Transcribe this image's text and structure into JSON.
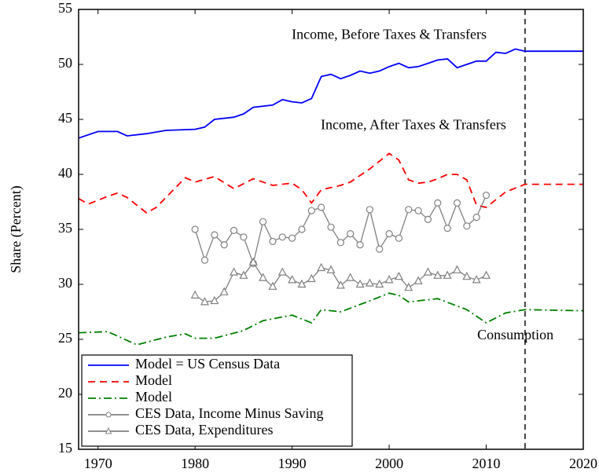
{
  "chart_data": {
    "type": "line",
    "ylabel": "Share (Percent)",
    "xlim": [
      1968,
      2020
    ],
    "xticks": [
      1970,
      1980,
      1990,
      2000,
      2010,
      2020
    ],
    "ylim": [
      15,
      55
    ],
    "yticks": [
      15,
      20,
      25,
      30,
      35,
      40,
      45,
      50,
      55
    ],
    "vline_x": 2014,
    "legend": "lower left",
    "annotations": [
      {
        "text": "Income, Before Taxes & Transfers",
        "x": 2000,
        "y": 52.6
      },
      {
        "text": "Income, After Taxes & Transfers",
        "x": 2002.5,
        "y": 44.4
      },
      {
        "text": "Consumption",
        "x": 2013,
        "y": 25.3
      }
    ],
    "series": [
      {
        "name": "Model = US Census Data",
        "color": "#0000ff",
        "dash": "solid",
        "marker": "none",
        "x": [
          1968,
          1970,
          1972,
          1973,
          1975,
          1977,
          1980,
          1981,
          1982,
          1984,
          1985,
          1986,
          1988,
          1989,
          1990,
          1991,
          1992,
          1993,
          1994,
          1995,
          1996,
          1997,
          1998,
          1999,
          2000,
          2001,
          2002,
          2003,
          2004,
          2005,
          2006,
          2007,
          2008,
          2009,
          2010,
          2011,
          2012,
          2013,
          2014,
          2020
        ],
        "values": [
          43.3,
          43.9,
          43.9,
          43.5,
          43.7,
          44.0,
          44.1,
          44.3,
          45.0,
          45.2,
          45.5,
          46.1,
          46.3,
          46.8,
          46.6,
          46.5,
          46.9,
          48.9,
          49.1,
          48.7,
          49.0,
          49.4,
          49.2,
          49.4,
          49.8,
          50.1,
          49.7,
          49.8,
          50.1,
          50.4,
          50.5,
          49.7,
          50.0,
          50.3,
          50.3,
          51.1,
          51.0,
          51.4,
          51.2,
          51.2
        ]
      },
      {
        "name": "Model",
        "color": "#ff0000",
        "dash": "dashed",
        "marker": "none",
        "x": [
          1968,
          1969,
          1971,
          1972,
          1973,
          1975,
          1976,
          1979,
          1980,
          1982,
          1984,
          1986,
          1988,
          1990,
          1991,
          1992,
          1993,
          1995,
          1996,
          1998,
          2000,
          2001,
          2002,
          2003,
          2004,
          2005,
          2006,
          2007,
          2008,
          2009,
          2010,
          2012,
          2014,
          2020
        ],
        "values": [
          37.8,
          37.3,
          38.0,
          38.3,
          37.9,
          36.5,
          37.0,
          39.7,
          39.3,
          39.8,
          38.7,
          39.6,
          39.0,
          39.2,
          38.6,
          37.4,
          38.6,
          39.0,
          39.3,
          40.5,
          41.9,
          41.3,
          39.5,
          39.2,
          39.3,
          39.6,
          40.0,
          40.0,
          39.5,
          37.2,
          37.0,
          38.4,
          39.1,
          39.1
        ]
      },
      {
        "name": "Model",
        "color": "#008000",
        "dash": "dashdot",
        "marker": "none",
        "x": [
          1968,
          1971,
          1974,
          1977,
          1979,
          1980,
          1982,
          1985,
          1987,
          1990,
          1992,
          1993,
          1995,
          1998,
          2000,
          2001,
          2002,
          2005,
          2008,
          2010,
          2012,
          2014,
          2020
        ],
        "values": [
          25.6,
          25.7,
          24.5,
          25.2,
          25.5,
          25.1,
          25.1,
          25.8,
          26.7,
          27.2,
          26.5,
          27.7,
          27.5,
          28.5,
          29.2,
          29.0,
          28.4,
          28.7,
          27.7,
          26.5,
          27.4,
          27.7,
          27.6
        ]
      },
      {
        "name": "CES Data, Income Minus Saving",
        "color": "#808080",
        "dash": "solid",
        "marker": "circle",
        "x": [
          1980,
          1981,
          1982,
          1983,
          1984,
          1985,
          1986,
          1987,
          1988,
          1989,
          1990,
          1991,
          1992,
          1993,
          1994,
          1995,
          1996,
          1997,
          1998,
          1999,
          2000,
          2001,
          2002,
          2003,
          2004,
          2005,
          2006,
          2007,
          2008,
          2009,
          2010
        ],
        "values": [
          35.0,
          32.2,
          34.5,
          33.6,
          34.9,
          34.3,
          31.9,
          35.7,
          33.9,
          34.3,
          34.2,
          35.0,
          36.7,
          37.0,
          35.2,
          33.8,
          34.6,
          33.6,
          36.8,
          33.2,
          34.6,
          34.2,
          36.8,
          36.7,
          35.9,
          37.4,
          35.1,
          37.4,
          35.3,
          36.1,
          38.1
        ]
      },
      {
        "name": "CES Data, Expenditures",
        "color": "#808080",
        "dash": "solid",
        "marker": "triangle",
        "x": [
          1980,
          1981,
          1982,
          1983,
          1984,
          1985,
          1986,
          1987,
          1988,
          1989,
          1990,
          1991,
          1992,
          1993,
          1994,
          1995,
          1996,
          1997,
          1998,
          1999,
          2000,
          2001,
          2002,
          2003,
          2004,
          2005,
          2006,
          2007,
          2008,
          2009,
          2010
        ],
        "values": [
          29.0,
          28.4,
          28.5,
          29.3,
          31.1,
          30.8,
          32.0,
          30.6,
          29.8,
          31.1,
          30.4,
          30.0,
          30.5,
          31.5,
          31.3,
          29.9,
          30.6,
          30.0,
          30.1,
          30.0,
          30.4,
          30.7,
          29.7,
          30.3,
          31.1,
          30.8,
          30.8,
          31.3,
          30.7,
          30.4,
          30.8
        ]
      }
    ]
  }
}
